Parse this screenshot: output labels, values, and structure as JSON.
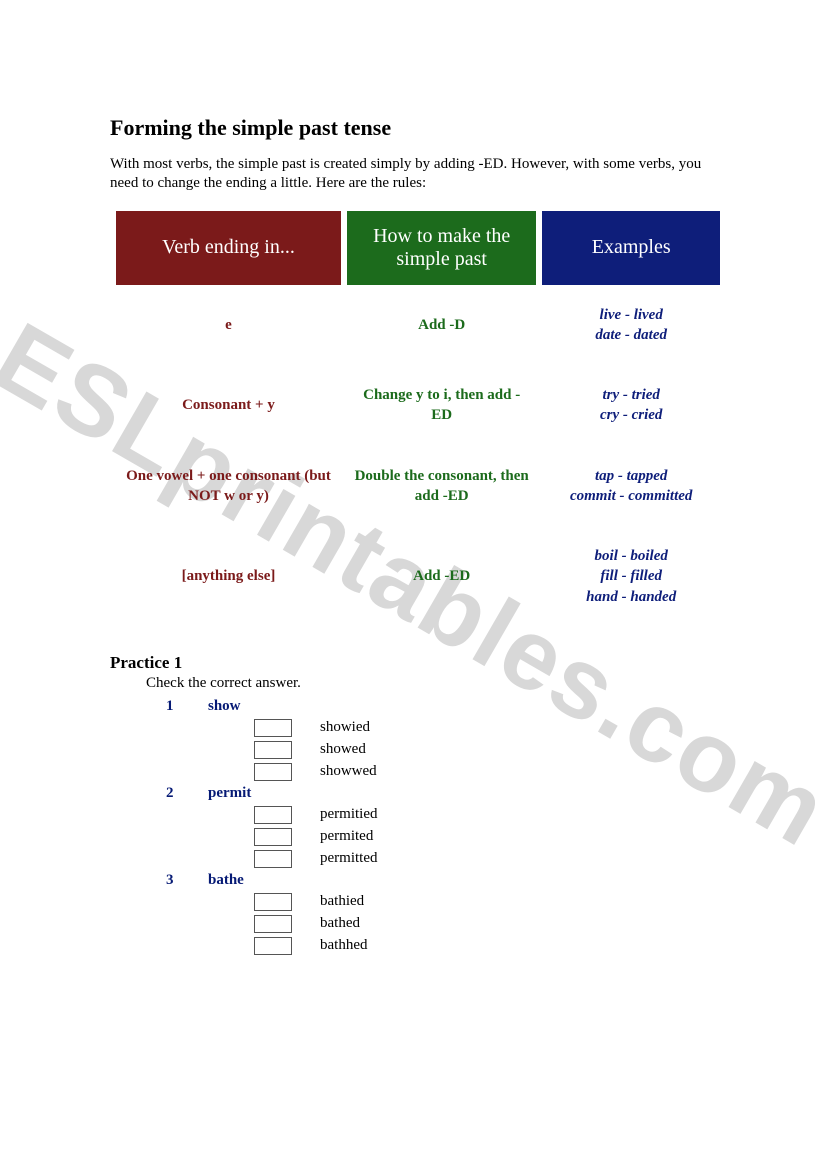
{
  "watermark": "ESLprintables.com",
  "title": "Forming the simple past tense",
  "intro": "With most verbs, the simple past is created simply by adding -ED. However, with some verbs, you need to change the ending a little. Here are the rules:",
  "headers": {
    "col0": {
      "text": "Verb ending in...",
      "bg": "#7b1a1a"
    },
    "col1": {
      "text": "How to make the simple past",
      "bg": "#1c6b1c"
    },
    "col2": {
      "text": "Examples",
      "bg": "#0e1e7a"
    }
  },
  "colors": {
    "col0_text": "#7b1a1a",
    "col1_text": "#1c6b1c",
    "col2_text": "#0e1e7a",
    "q_color": "#061a75"
  },
  "rules": [
    {
      "ending": "e",
      "how": "Add -D",
      "examples": "live - lived\ndate - dated"
    },
    {
      "ending": "Consonant + y",
      "how": "Change y to i, then add -ED",
      "examples": "try - tried\ncry - cried"
    },
    {
      "ending": "One vowel + one consonant (but NOT w or y)",
      "how": "Double the consonant, then add -ED",
      "examples": "tap - tapped\ncommit - committed"
    },
    {
      "ending": "[anything else]",
      "how": "Add -ED",
      "examples": "boil - boiled\nfill - filled\nhand - handed"
    }
  ],
  "practice": {
    "heading": "Practice 1",
    "instruction": "Check the correct answer.",
    "questions": [
      {
        "num": "1",
        "word": "show",
        "options": [
          "showied",
          "showed",
          "showwed"
        ]
      },
      {
        "num": "2",
        "word": "permit",
        "options": [
          "permitied",
          "permited",
          "permitted"
        ]
      },
      {
        "num": "3",
        "word": "bathe",
        "options": [
          "bathied",
          "bathed",
          "bathhed"
        ]
      }
    ]
  }
}
